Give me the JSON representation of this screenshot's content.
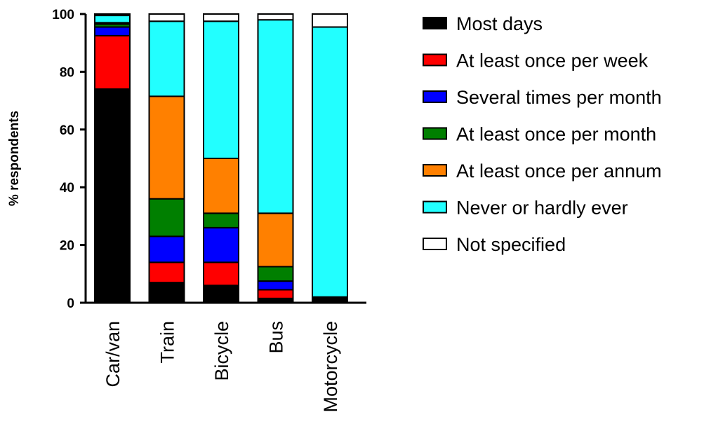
{
  "chart_data": {
    "type": "bar",
    "stacked": true,
    "categories": [
      "Car/van",
      "Train",
      "Bicycle",
      "Bus",
      "Motorcycle"
    ],
    "ylabel": "% respondents",
    "ylim": [
      0,
      100
    ],
    "yticks": [
      0,
      20,
      40,
      60,
      80,
      100
    ],
    "legend_position": "right",
    "series": [
      {
        "name": "Most days",
        "color": "#000000",
        "values": [
          74,
          7,
          6,
          1.5,
          2
        ]
      },
      {
        "name": "At least once per week",
        "color": "#ff0000",
        "values": [
          18.5,
          7,
          8,
          3,
          0
        ]
      },
      {
        "name": "Several times per month",
        "color": "#0000ff",
        "values": [
          3,
          9,
          12,
          3,
          0
        ]
      },
      {
        "name": "At least once per month",
        "color": "#007f00",
        "values": [
          1,
          13,
          5,
          5,
          0
        ]
      },
      {
        "name": "At least once per annum",
        "color": "#ff8000",
        "values": [
          0.5,
          35.5,
          19,
          18.5,
          0
        ]
      },
      {
        "name": "Never or hardly ever",
        "color": "#22ffff",
        "values": [
          2.5,
          26,
          47.5,
          67,
          93.5
        ]
      },
      {
        "name": "Not specified",
        "color": "#ffffff",
        "values": [
          0.5,
          2.5,
          2.5,
          2,
          4.5
        ]
      }
    ]
  }
}
